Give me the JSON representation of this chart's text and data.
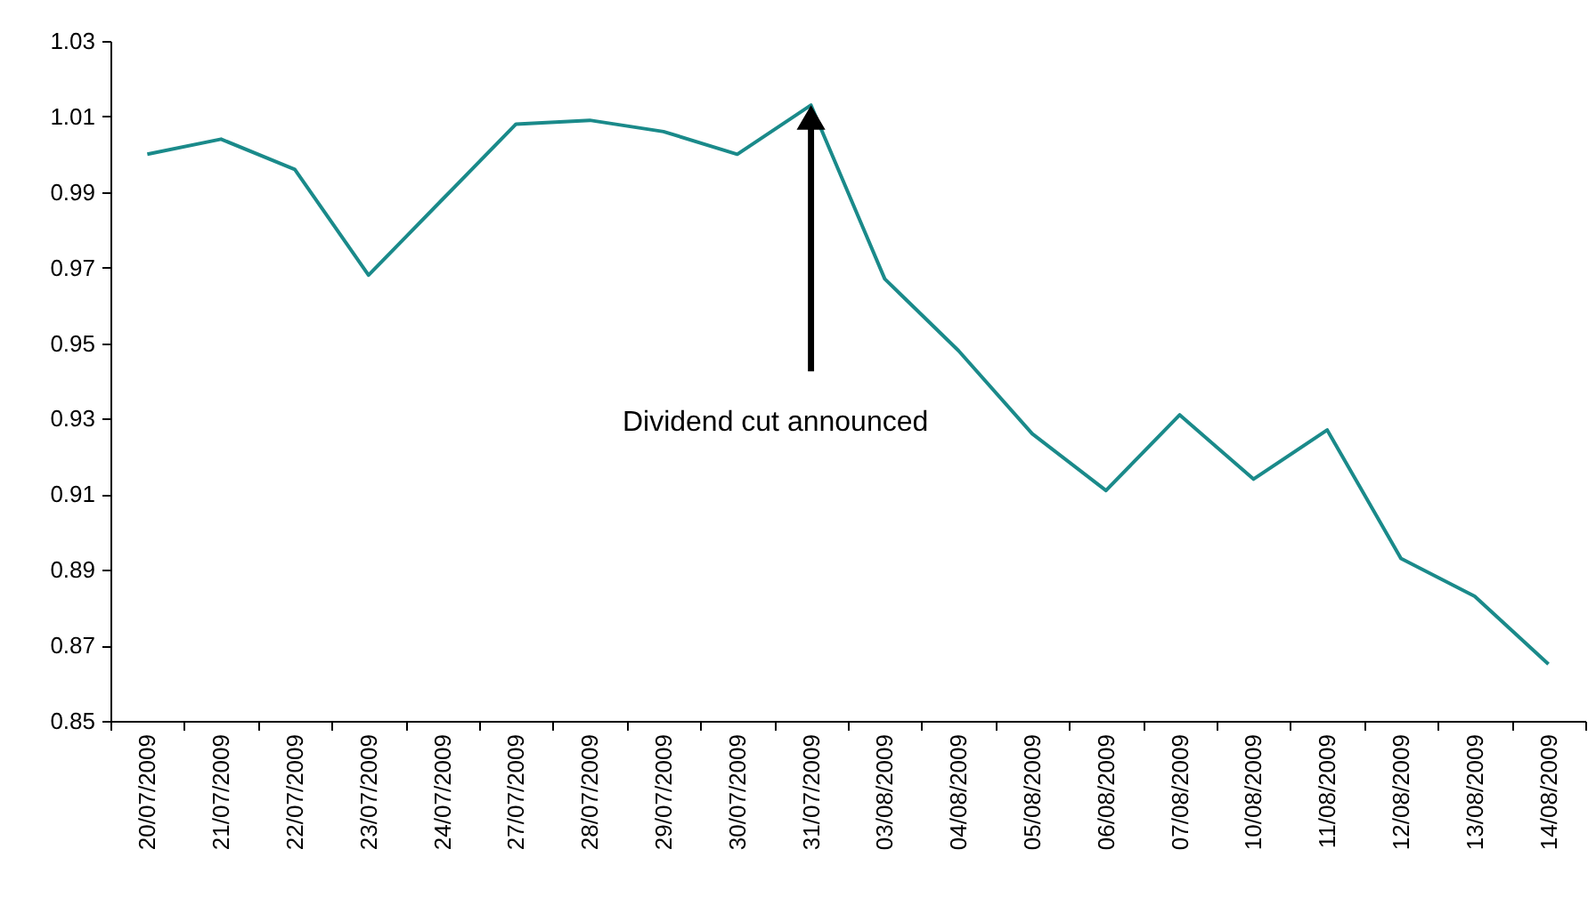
{
  "chart_data": {
    "type": "line",
    "categories": [
      "20/07/2009",
      "21/07/2009",
      "22/07/2009",
      "23/07/2009",
      "24/07/2009",
      "27/07/2009",
      "28/07/2009",
      "29/07/2009",
      "30/07/2009",
      "31/07/2009",
      "03/08/2009",
      "04/08/2009",
      "05/08/2009",
      "06/08/2009",
      "07/08/2009",
      "10/08/2009",
      "11/08/2009",
      "12/08/2009",
      "13/08/2009",
      "14/08/2009"
    ],
    "values": [
      1.0,
      1.004,
      0.996,
      0.968,
      0.988,
      1.008,
      1.009,
      1.006,
      1.0,
      1.013,
      0.967,
      0.948,
      0.926,
      0.911,
      0.931,
      0.914,
      0.927,
      0.893,
      0.883,
      0.865
    ],
    "color": "#1a8a8a",
    "ylim": [
      0.85,
      1.03
    ],
    "yticks": [
      0.85,
      0.87,
      0.89,
      0.91,
      0.93,
      0.95,
      0.97,
      0.99,
      1.01,
      1.03
    ],
    "grid": false,
    "marker": "none",
    "annotations": [
      "Dividend cut announced"
    ]
  }
}
